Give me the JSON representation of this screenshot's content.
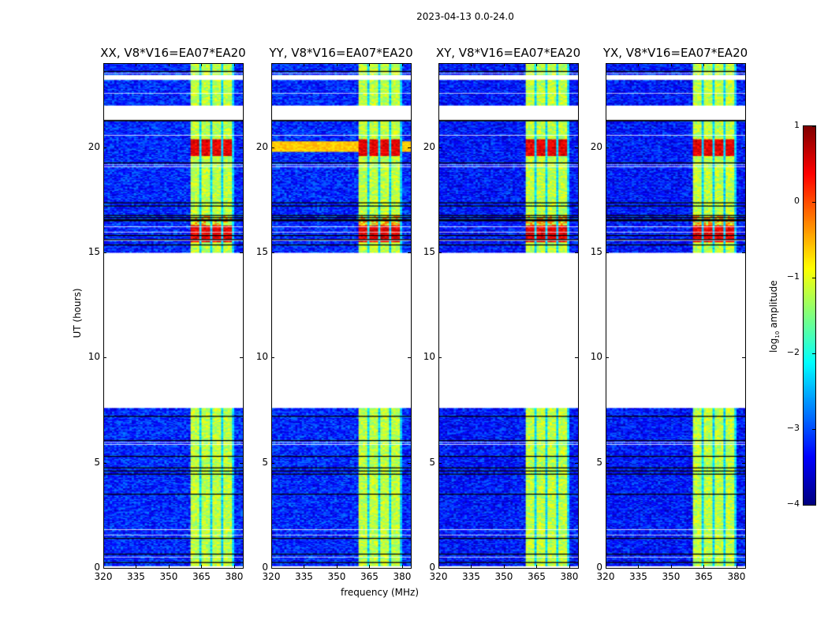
{
  "chart_data": {
    "type": "heatmap",
    "title": "2023-04-13 0.0-24.0",
    "xlabel": "frequency (MHz)",
    "ylabel": "UT (hours)",
    "xlim": [
      320,
      384
    ],
    "ylim": [
      0,
      24
    ],
    "xticks": [
      "320",
      "335",
      "350",
      "365",
      "380"
    ],
    "yticks": [
      "0",
      "5",
      "10",
      "15",
      "20"
    ],
    "panels": [
      {
        "title": "XX, V8*V16=EA07*EA20"
      },
      {
        "title": "YY, V8*V16=EA07*EA20"
      },
      {
        "title": "XY, V8*V16=EA07*EA20"
      },
      {
        "title": "YX, V8*V16=EA07*EA20"
      }
    ],
    "colorbar": {
      "label": "log10 amplitude",
      "label_main": "log",
      "label_sub": "10",
      "label_rest": " amplitude",
      "range": [
        -4,
        1
      ],
      "ticks": [
        "1",
        "0",
        "−1",
        "−2",
        "−3",
        "−4"
      ],
      "colormap": "jet"
    },
    "features": {
      "flagged_gap_hours": [
        7.6,
        15.0
      ],
      "rfi_band_mhz": [
        360,
        380
      ],
      "background_log_amp": -3.2,
      "rfi_log_amp": -1.2,
      "strong_burst_hours": [
        [
          15.5,
          16.3
        ],
        [
          19.6,
          20.4
        ]
      ]
    }
  }
}
